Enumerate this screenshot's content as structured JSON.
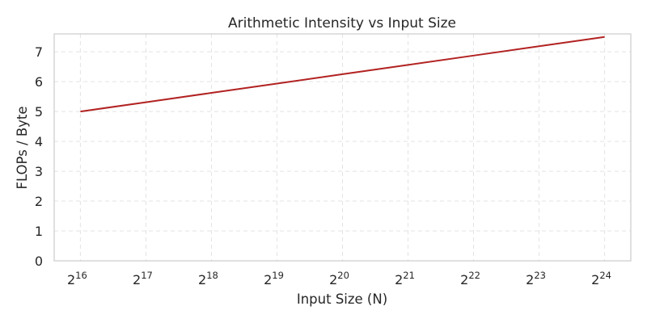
{
  "chart_data": {
    "type": "line",
    "title": "Arithmetic Intensity vs Input Size",
    "xlabel": "Input Size (N)",
    "ylabel": "FLOPs / Byte",
    "x_scale": "log2",
    "x_tick_base": "2",
    "x_ticks": [
      16,
      17,
      18,
      19,
      20,
      21,
      22,
      23,
      24
    ],
    "y_ticks": [
      0,
      1,
      2,
      3,
      4,
      5,
      6,
      7
    ],
    "xlim": [
      15.6,
      24.4
    ],
    "ylim": [
      0,
      7.6
    ],
    "grid": true,
    "series": [
      {
        "color": "#b22222",
        "x": [
          65536,
          131072,
          262144,
          524288,
          1048576,
          2097152,
          4194304,
          8388608,
          16777216
        ],
        "y": [
          5.0,
          5.3125,
          5.625,
          5.9375,
          6.25,
          6.5625,
          6.875,
          7.1875,
          7.5
        ]
      }
    ]
  }
}
